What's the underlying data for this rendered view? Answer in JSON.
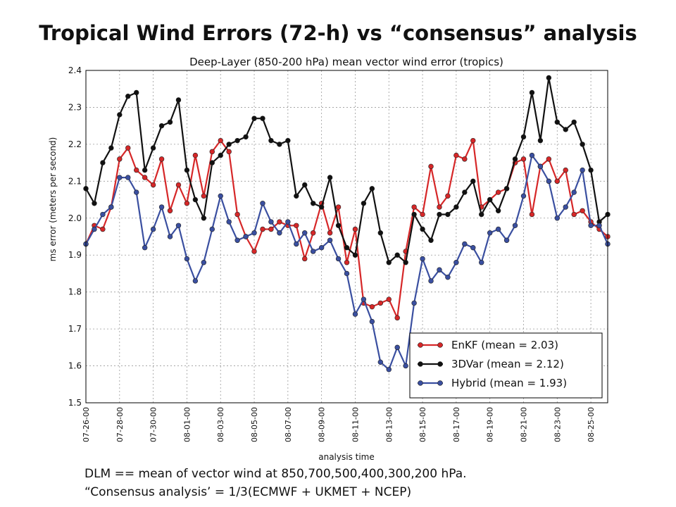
{
  "slide": {
    "title": "Tropical Wind Errors (72-h) vs “consensus” analysis",
    "notes": [
      "DLM == mean of vector wind at 850,700,500,400,300,200 hPa.",
      "“Consensus analysis’ = 1/3(ECMWF + UKMET + NCEP)"
    ]
  },
  "chart_data": {
    "type": "line",
    "title": "Deep-Layer (850-200 hPa) mean vector wind error (tropics)",
    "xlabel": "analysis time",
    "ylabel": "ms error (meters per second)",
    "ylim": [
      1.5,
      2.4
    ],
    "yticks": [
      "1.5",
      "1.6",
      "1.7",
      "1.8",
      "1.9",
      "2.0",
      "2.1",
      "2.2",
      "2.3",
      "2.4"
    ],
    "xticks": [
      "07-26-00",
      "07-28-00",
      "07-30-00",
      "08-01-00",
      "08-03-00",
      "08-05-00",
      "08-07-00",
      "08-09-00",
      "08-11-00",
      "08-13-00",
      "08-15-00",
      "08-17-00",
      "08-19-00",
      "08-21-00",
      "08-23-00",
      "08-25-00"
    ],
    "x_start": "07-26-00",
    "x_step_hours": 12,
    "grid": true,
    "legend_position": "bottom-right",
    "series": [
      {
        "name": "EnKF (mean = 2.03)",
        "color": "#d62728",
        "values": [
          1.93,
          1.98,
          1.97,
          2.03,
          2.16,
          2.19,
          2.13,
          2.11,
          2.09,
          2.16,
          2.02,
          2.09,
          2.04,
          2.17,
          2.06,
          2.18,
          2.21,
          2.18,
          2.01,
          1.95,
          1.91,
          1.97,
          1.97,
          1.99,
          1.98,
          1.98,
          1.89,
          1.96,
          2.04,
          1.96,
          2.03,
          1.88,
          1.97,
          1.77,
          1.76,
          1.77,
          1.78,
          1.73,
          1.91,
          2.03,
          2.01,
          2.14,
          2.03,
          2.06,
          2.17,
          2.16,
          2.21,
          2.03,
          2.05,
          2.07,
          2.08,
          2.15,
          2.16,
          2.01,
          2.14,
          2.16,
          2.1,
          2.13,
          2.01,
          2.02,
          1.99,
          1.97,
          1.95
        ]
      },
      {
        "name": "3DVar (mean = 2.12)",
        "color": "#111111",
        "values": [
          2.08,
          2.04,
          2.15,
          2.19,
          2.28,
          2.33,
          2.34,
          2.13,
          2.19,
          2.25,
          2.26,
          2.32,
          2.13,
          2.05,
          2.0,
          2.15,
          2.17,
          2.2,
          2.21,
          2.22,
          2.27,
          2.27,
          2.21,
          2.2,
          2.21,
          2.06,
          2.09,
          2.04,
          2.03,
          2.11,
          1.98,
          1.92,
          1.9,
          2.04,
          2.08,
          1.96,
          1.88,
          1.9,
          1.88,
          2.01,
          1.97,
          1.94,
          2.01,
          2.01,
          2.03,
          2.07,
          2.1,
          2.01,
          2.05,
          2.02,
          2.08,
          2.16,
          2.22,
          2.34,
          2.21,
          2.38,
          2.26,
          2.24,
          2.26,
          2.2,
          2.13,
          1.99,
          2.01
        ]
      },
      {
        "name": "Hybrid (mean = 1.93)",
        "color": "#3a4fa0",
        "values": [
          1.93,
          1.97,
          2.01,
          2.03,
          2.11,
          2.11,
          2.07,
          1.92,
          1.97,
          2.03,
          1.95,
          1.98,
          1.89,
          1.83,
          1.88,
          1.97,
          2.06,
          1.99,
          1.94,
          1.95,
          1.96,
          2.04,
          1.99,
          1.96,
          1.99,
          1.93,
          1.96,
          1.91,
          1.92,
          1.94,
          1.89,
          1.85,
          1.74,
          1.78,
          1.72,
          1.61,
          1.59,
          1.65,
          1.6,
          1.77,
          1.89,
          1.83,
          1.86,
          1.84,
          1.88,
          1.93,
          1.92,
          1.88,
          1.96,
          1.97,
          1.94,
          1.98,
          2.06,
          2.17,
          2.14,
          2.1,
          2.0,
          2.03,
          2.07,
          2.13,
          1.98,
          1.98,
          1.93
        ]
      }
    ]
  }
}
